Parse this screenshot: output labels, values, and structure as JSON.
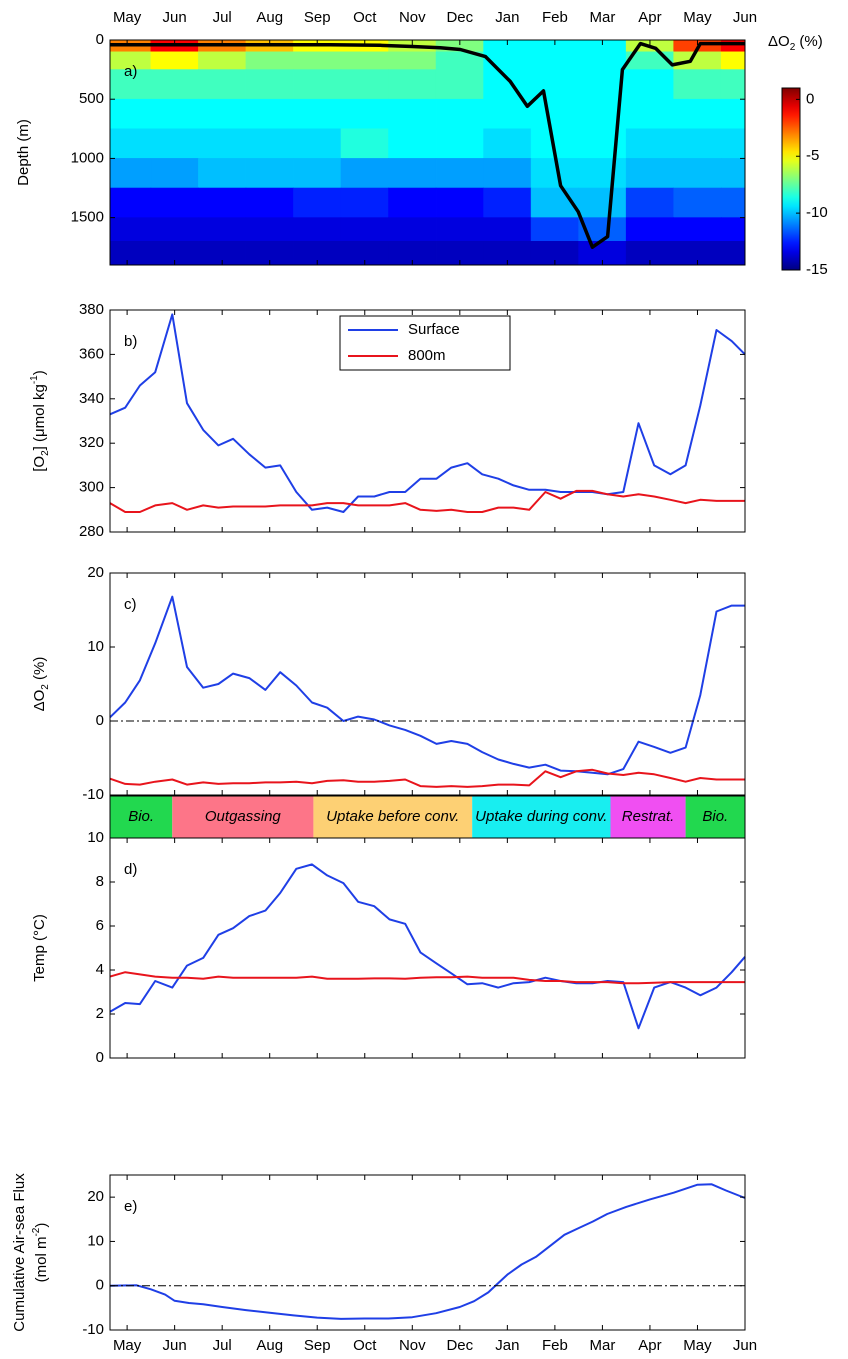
{
  "x_axis": {
    "xlim": [
      -0.36,
      13
    ],
    "xticks": [
      {
        "value": 0,
        "label": "May"
      },
      {
        "value": 1,
        "label": "Jun"
      },
      {
        "value": 2,
        "label": "Jul"
      },
      {
        "value": 3,
        "label": "Aug"
      },
      {
        "value": 4,
        "label": "Sep"
      },
      {
        "value": 5,
        "label": "Oct"
      },
      {
        "value": 6,
        "label": "Nov"
      },
      {
        "value": 7,
        "label": "Dec"
      },
      {
        "value": 8,
        "label": "Jan"
      },
      {
        "value": 9,
        "label": "Feb"
      },
      {
        "value": 10,
        "label": "Mar"
      },
      {
        "value": 11,
        "label": "Apr"
      },
      {
        "value": 12,
        "label": "May"
      },
      {
        "value": 13,
        "label": "Jun"
      }
    ]
  },
  "chart_data": [
    {
      "type": "heatmap",
      "label": "a)",
      "ylabel": [
        {
          "text": "Depth (m)"
        }
      ],
      "ylim": [
        1900,
        0
      ],
      "yticks": [
        0,
        500,
        1000,
        1500
      ],
      "x_edges": [
        -0.36,
        0.5,
        1.5,
        2.5,
        3.5,
        4.5,
        5.5,
        6.5,
        7.5,
        8.5,
        9.5,
        10.5,
        11.5,
        12.5,
        13
      ],
      "y_edges": [
        0,
        100,
        250,
        500,
        750,
        1000,
        1250,
        1500,
        1700,
        1900
      ],
      "z": [
        [
          -3,
          -1,
          -3,
          -4,
          -5,
          -5,
          -6,
          -7,
          -9,
          -9,
          -9,
          -6,
          -2,
          -1
        ],
        [
          -6,
          -5,
          -6,
          -7,
          -7,
          -7,
          -7,
          -8,
          -9,
          -9,
          -9,
          -8,
          -6,
          -5
        ],
        [
          -8,
          -8,
          -8,
          -8,
          -8,
          -8,
          -8,
          -8,
          -9,
          -9,
          -9,
          -9,
          -8,
          -8
        ],
        [
          -9,
          -9,
          -9,
          -9,
          -9,
          -9,
          -9,
          -9,
          -9,
          -9,
          -9,
          -9,
          -9,
          -9
        ],
        [
          -9.5,
          -9.5,
          -9.5,
          -9.5,
          -9.5,
          -8.5,
          -9,
          -9,
          -9.5,
          -9,
          -9,
          -9.5,
          -9.5,
          -9.5
        ],
        [
          -10.5,
          -10.5,
          -10,
          -10,
          -10,
          -10.5,
          -10.5,
          -10.5,
          -10.5,
          -9.5,
          -9.5,
          -10,
          -10,
          -10
        ],
        [
          -13,
          -13,
          -13,
          -13,
          -12.5,
          -12.5,
          -13,
          -13,
          -12.5,
          -10,
          -10,
          -12,
          -11.5,
          -11.5
        ],
        [
          -13.5,
          -13.5,
          -13.5,
          -13.5,
          -13.5,
          -13.5,
          -13.5,
          -13.5,
          -13.5,
          -12,
          -11.5,
          -13,
          -13,
          -13
        ],
        [
          -14,
          -14,
          -14,
          -14,
          -14,
          -14,
          -14,
          -14,
          -14,
          -14,
          -13.5,
          -14,
          -14,
          -14
        ]
      ],
      "colorbar": {
        "clim": [
          -15,
          1
        ],
        "cticks": [
          0,
          -5,
          -10,
          -15
        ],
        "label": [
          {
            "text": "ΔO"
          },
          {
            "text": "2",
            "shift": "sub"
          },
          {
            "text": " (%)"
          }
        ]
      },
      "mld": {
        "color": "#000000",
        "x": [
          -0.36,
          1.12,
          4.27,
          5.33,
          6.0,
          6.59,
          7.01,
          7.54,
          8.06,
          8.42,
          8.76,
          9.12,
          9.49,
          9.79,
          10.11,
          10.42,
          10.8,
          11.12,
          11.47,
          11.85,
          12.06,
          13
        ],
        "values": [
          40,
          40,
          40,
          45,
          55,
          65,
          80,
          140,
          350,
          560,
          430,
          1230,
          1450,
          1750,
          1660,
          250,
          30,
          70,
          210,
          180,
          30,
          30
        ]
      }
    },
    {
      "type": "line",
      "label": "b)",
      "ylabel": [
        {
          "text": "[O"
        },
        {
          "text": "2",
          "shift": "sub"
        },
        {
          "text": "] (μmol kg"
        },
        {
          "text": "-1",
          "shift": "super"
        },
        {
          "text": ")"
        }
      ],
      "ylim": [
        280,
        380
      ],
      "yticks": [
        280,
        300,
        320,
        340,
        360,
        380
      ],
      "legend": "upper center",
      "x": [
        -0.36,
        -0.04,
        0.27,
        0.59,
        0.95,
        1.26,
        1.6,
        1.92,
        2.23,
        2.57,
        2.91,
        3.22,
        3.56,
        3.89,
        4.21,
        4.55,
        4.86,
        5.2,
        5.52,
        5.85,
        6.17,
        6.51,
        6.82,
        7.16,
        7.47,
        7.81,
        8.13,
        8.46,
        8.8,
        9.12,
        9.45,
        9.79,
        10.11,
        10.44,
        10.76,
        11.09,
        11.43,
        11.75,
        12.06,
        12.4,
        12.72,
        13
      ],
      "series": [
        {
          "name": "Surface",
          "color": "#1f3fe6",
          "values": [
            333,
            336,
            346,
            352,
            378,
            338,
            326,
            319,
            322,
            315,
            309,
            310,
            298,
            290,
            291,
            289,
            296,
            296,
            298,
            298,
            304,
            304,
            309,
            311,
            306,
            304,
            301,
            299,
            299,
            298,
            298,
            298,
            297,
            298,
            329,
            310,
            306,
            310,
            337,
            371,
            366,
            360
          ]
        },
        {
          "name": "800m",
          "color": "#e8141c",
          "values": [
            293,
            289,
            289,
            292,
            293,
            290,
            292,
            291,
            291.5,
            291.5,
            291.5,
            292,
            292,
            292,
            293,
            293,
            292,
            292,
            292,
            293,
            290,
            289.5,
            290,
            289,
            289,
            291,
            291,
            290,
            298,
            295,
            298.5,
            298.5,
            297,
            296,
            297,
            296,
            294.5,
            293,
            294.5,
            294,
            294,
            294
          ]
        }
      ]
    },
    {
      "type": "line",
      "label": "c)",
      "ylabel": [
        {
          "text": "ΔO"
        },
        {
          "text": "2",
          "shift": "sub"
        },
        {
          "text": " (%)"
        }
      ],
      "ylim": [
        -10,
        20
      ],
      "yticks": [
        -10,
        0,
        10,
        20
      ],
      "hline": 0,
      "x": [
        -0.36,
        -0.04,
        0.27,
        0.59,
        0.95,
        1.26,
        1.6,
        1.92,
        2.23,
        2.57,
        2.91,
        3.22,
        3.56,
        3.89,
        4.21,
        4.55,
        4.86,
        5.2,
        5.52,
        5.85,
        6.17,
        6.51,
        6.82,
        7.16,
        7.47,
        7.81,
        8.13,
        8.46,
        8.8,
        9.12,
        9.45,
        9.79,
        10.11,
        10.44,
        10.76,
        11.09,
        11.43,
        11.75,
        12.06,
        12.4,
        12.72,
        13
      ],
      "series": [
        {
          "color": "#1f3fe6",
          "values": [
            0.5,
            2.5,
            5.5,
            10.5,
            16.8,
            7.3,
            4.5,
            5,
            6.4,
            5.8,
            4.2,
            6.6,
            4.8,
            2.5,
            1.8,
            0,
            0.6,
            0.2,
            -0.6,
            -1.2,
            -2,
            -3.1,
            -2.7,
            -3.1,
            -4.2,
            -5.2,
            -5.8,
            -6.3,
            -5.9,
            -6.7,
            -6.8,
            -7,
            -7.2,
            -6.5,
            -2.8,
            -3.5,
            -4.3,
            -3.6,
            3.5,
            14.8,
            15.6,
            15.6
          ]
        },
        {
          "color": "#e8141c",
          "values": [
            -7.8,
            -8.5,
            -8.6,
            -8.2,
            -7.9,
            -8.6,
            -8.3,
            -8.5,
            -8.4,
            -8.4,
            -8.3,
            -8.3,
            -8.2,
            -8.4,
            -8.1,
            -8.0,
            -8.2,
            -8.2,
            -8.1,
            -7.9,
            -8.8,
            -8.9,
            -8.8,
            -8.9,
            -8.8,
            -8.6,
            -8.6,
            -8.7,
            -6.8,
            -7.6,
            -6.8,
            -6.6,
            -7.1,
            -7.3,
            -7.0,
            -7.2,
            -7.7,
            -8.2,
            -7.7,
            -7.9,
            -7.9,
            -7.9
          ]
        }
      ],
      "phases": [
        {
          "label": "Bio.",
          "start": -0.36,
          "end": 0.95,
          "color": "#22d84f"
        },
        {
          "label": "Outgassing",
          "start": 0.95,
          "end": 3.92,
          "color": "#fd7588"
        },
        {
          "label": "Uptake before conv.",
          "start": 3.92,
          "end": 7.26,
          "color": "#fdd074"
        },
        {
          "label": "Uptake during conv.",
          "start": 7.26,
          "end": 10.17,
          "color": "#18eef0"
        },
        {
          "label": "Restrat.",
          "start": 10.17,
          "end": 11.75,
          "color": "#f04ff2"
        },
        {
          "label": "Bio.",
          "start": 11.75,
          "end": 13,
          "color": "#22d84f"
        }
      ]
    },
    {
      "type": "line",
      "label": "d)",
      "ylabel": [
        {
          "text": "Temp (°C)"
        }
      ],
      "ylim": [
        0,
        10
      ],
      "yticks": [
        0,
        2,
        4,
        6,
        8,
        10
      ],
      "x": [
        -0.36,
        -0.04,
        0.27,
        0.59,
        0.95,
        1.26,
        1.6,
        1.92,
        2.23,
        2.57,
        2.91,
        3.22,
        3.56,
        3.89,
        4.21,
        4.55,
        4.86,
        5.2,
        5.52,
        5.85,
        6.17,
        6.51,
        6.82,
        7.16,
        7.47,
        7.81,
        8.13,
        8.46,
        8.8,
        9.12,
        9.45,
        9.79,
        10.11,
        10.44,
        10.76,
        11.09,
        11.43,
        11.75,
        12.06,
        12.4,
        12.72,
        13
      ],
      "series": [
        {
          "color": "#1f3fe6",
          "values": [
            2.1,
            2.5,
            2.45,
            3.5,
            3.2,
            4.2,
            4.55,
            5.6,
            5.9,
            6.45,
            6.7,
            7.5,
            8.6,
            8.8,
            8.3,
            7.95,
            7.1,
            6.9,
            6.3,
            6.1,
            4.8,
            4.3,
            3.85,
            3.35,
            3.4,
            3.2,
            3.4,
            3.45,
            3.65,
            3.5,
            3.4,
            3.4,
            3.5,
            3.45,
            1.35,
            3.2,
            3.45,
            3.2,
            2.85,
            3.2,
            3.9,
            4.6
          ]
        },
        {
          "color": "#e8141c",
          "values": [
            3.7,
            3.9,
            3.8,
            3.7,
            3.65,
            3.65,
            3.6,
            3.7,
            3.65,
            3.65,
            3.65,
            3.65,
            3.65,
            3.7,
            3.6,
            3.6,
            3.6,
            3.62,
            3.62,
            3.6,
            3.65,
            3.67,
            3.67,
            3.7,
            3.65,
            3.65,
            3.65,
            3.55,
            3.5,
            3.5,
            3.45,
            3.45,
            3.45,
            3.4,
            3.4,
            3.42,
            3.45,
            3.45,
            3.45,
            3.45,
            3.45,
            3.45
          ]
        }
      ]
    },
    {
      "type": "line",
      "label": "e)",
      "ylabel": [
        {
          "text": "Cumulative Air-sea Flux"
        }
      ],
      "ylabel2": [
        {
          "text": "(mol m"
        },
        {
          "text": "-2",
          "shift": "super"
        },
        {
          "text": ")"
        }
      ],
      "ylim": [
        -10,
        25
      ],
      "yticks": [
        -10,
        0,
        10,
        20
      ],
      "hline": 0,
      "x": [
        -0.36,
        0.2,
        0.5,
        0.8,
        1.0,
        1.3,
        1.6,
        2.0,
        2.5,
        3.0,
        3.5,
        4.0,
        4.5,
        5.0,
        5.5,
        6.0,
        6.5,
        7.0,
        7.3,
        7.6,
        7.8,
        8.0,
        8.3,
        8.6,
        8.9,
        9.2,
        9.5,
        9.8,
        10.1,
        10.5,
        11.0,
        11.5,
        12.0,
        12.3,
        12.6,
        13
      ],
      "series": [
        {
          "color": "#1f3fe6",
          "values": [
            0,
            0.1,
            -0.8,
            -2.0,
            -3.4,
            -3.9,
            -4.2,
            -4.8,
            -5.5,
            -6.1,
            -6.7,
            -7.2,
            -7.5,
            -7.4,
            -7.4,
            -7.1,
            -6.2,
            -4.8,
            -3.5,
            -1.5,
            0.5,
            2.5,
            4.8,
            6.5,
            9,
            11.5,
            13,
            14.5,
            16.2,
            17.8,
            19.5,
            21,
            22.8,
            22.9,
            21.5,
            19.8
          ]
        }
      ]
    }
  ]
}
